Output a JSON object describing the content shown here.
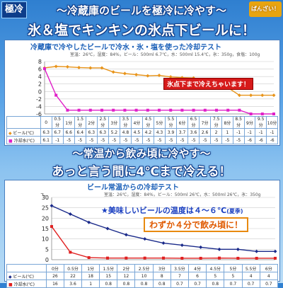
{
  "header": {
    "logo": "極冷",
    "badge": "ばんざい！",
    "headline1": "～冷蔵庫のビールを極冷に冷やす～",
    "headline2": "氷＆塩でキンキンの氷点下ビールに！"
  },
  "section2": {
    "headline1": "～常温から飲み頃に冷やす～",
    "headline2": "あっと言う間に4℃まで冷える！"
  },
  "panel1": {
    "title": "冷蔵庫で冷やしたビールで冷水・氷・塩を使った冷却テスト",
    "conditions": "室温：26℃，湿度：84%，ビール：500ml 6.7℃，水：500ml 15.4℃，氷：350g，食塩：100g",
    "annotation": "氷点下まで冷えちゃいます！",
    "colors": {
      "beer": "#e8941a",
      "water": "#e020c8"
    }
  },
  "panel2": {
    "title": "ビール常温からの冷却テスト",
    "conditions": "室温：26℃，湿度：84%，ビール：500ml 26℃，水：500ml 26℃，氷：350g",
    "annotation1": "★美味しいビールの温度は４～６℃",
    "annotation1_note": "(夏季)",
    "annotation2": "わずか４分で飲み頃に！",
    "colors": {
      "beer": "#1a2a8a",
      "water": "#e02020"
    }
  },
  "chart_data": [
    {
      "type": "line",
      "title": "冷蔵庫で冷やしたビールで冷水・氷・塩を使った冷却テスト",
      "categories": [
        "0分",
        "0.5分",
        "1分",
        "1.5分",
        "2分",
        "2.5分",
        "3分",
        "3.5分",
        "4分",
        "4.5分",
        "5分",
        "5.5分",
        "6分",
        "6.5分",
        "7分",
        "7.5分",
        "8分",
        "8.5分",
        "9分",
        "9.5分",
        "10分"
      ],
      "tick_labels": [
        "0",
        "0.5\n分",
        "1分",
        "1.5分",
        "2分",
        "2.5分",
        "3分",
        "3.5分",
        "4分",
        "4.5分",
        "5分",
        "5.5分",
        "6分",
        "6.5分",
        "7分",
        "7.5分",
        "8分",
        "8.5分",
        "9分",
        "9.5分",
        "10\n分"
      ],
      "series": [
        {
          "name": "ビール(℃)",
          "values": [
            6.3,
            6.7,
            6.6,
            6.4,
            6.3,
            6.3,
            5.2,
            4.8,
            4.5,
            4.2,
            4.3,
            3.9,
            3.7,
            3.6,
            2.6,
            2,
            1,
            -1,
            -1,
            -1,
            -1
          ],
          "labels": [
            "6.3",
            "6.7",
            "6.6",
            "6.4",
            "6.3",
            "6.3",
            "5.2",
            "4.8",
            "4.5",
            "4.2",
            "4.3",
            "3.9",
            "3.7",
            "3.6",
            "2.6",
            "2",
            "1",
            "-1",
            "-1",
            "-1",
            "-1"
          ]
        },
        {
          "name": "冷却水(℃)",
          "values": [
            6.1,
            -1,
            -5,
            -5,
            -5,
            -5,
            -5,
            -5,
            -5,
            -5,
            -5,
            -5,
            -5,
            -5,
            -5,
            -5,
            -5,
            -5,
            -6,
            -6,
            -6
          ],
          "labels": [
            "6.1",
            "-1",
            "-5",
            "-5",
            "-5",
            "-5",
            "-5",
            "-5",
            "-5",
            "-5",
            "-5",
            "-5",
            "-5",
            "-5",
            "-5",
            "-5",
            "-5",
            "-5",
            "-6",
            "-6",
            "-6"
          ]
        }
      ],
      "yticks": [
        "8",
        "6",
        "4",
        "2",
        "0",
        "-2",
        "-4",
        "-6"
      ],
      "ylim": [
        -6,
        8
      ],
      "grid": true,
      "legend": "bottom-left table"
    },
    {
      "type": "line",
      "title": "ビール常温からの冷却テスト",
      "categories": [
        "0分",
        "0.5分",
        "1分",
        "1.5分",
        "2分",
        "2.5分",
        "3分",
        "3.5分",
        "4分",
        "4.5分",
        "5分",
        "5.5分",
        "6分"
      ],
      "tick_labels": [
        "0分",
        "0.5分",
        "1分",
        "1.5分",
        "2分",
        "2.5分",
        "3分",
        "3.5分",
        "4分",
        "4.5分",
        "5分",
        "5.5分",
        "6分"
      ],
      "series": [
        {
          "name": "ビール(℃)",
          "values": [
            26,
            22,
            18,
            15,
            12,
            10,
            8,
            7,
            6,
            5,
            5,
            4,
            4
          ],
          "labels": [
            "26",
            "22",
            "18",
            "15",
            "12",
            "10",
            "8",
            "7",
            "6",
            "5",
            "5",
            "4",
            "4"
          ]
        },
        {
          "name": "冷却水(℃)",
          "values": [
            16,
            3.6,
            1,
            0.8,
            0.8,
            0.8,
            0.8,
            0.7,
            0.7,
            0.8,
            0.7,
            0.7,
            0.7
          ],
          "labels": [
            "16",
            "3.6",
            "1",
            "0.8",
            "0.8",
            "0.8",
            "0.8",
            "0.7",
            "0.7",
            "0.8",
            "0.7",
            "0.7",
            "0.7"
          ]
        }
      ],
      "yticks": [
        "30",
        "25",
        "20",
        "15",
        "10",
        "5",
        "0"
      ],
      "yunit": "℃",
      "ylim": [
        0,
        30
      ],
      "grid": true,
      "legend": "bottom-left table"
    }
  ]
}
